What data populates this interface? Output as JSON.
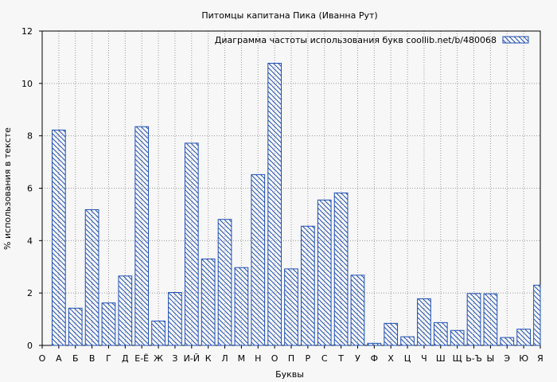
{
  "chart_data": {
    "type": "bar",
    "title": "Питомцы капитана Пика (Иванна Рут)",
    "xlabel": "Буквы",
    "ylabel": "% использования в тексте",
    "ylim": [
      0,
      12
    ],
    "yticks": [
      0,
      2,
      4,
      6,
      8,
      10,
      12
    ],
    "grid": true,
    "legend_position": "top-right",
    "categories": [
      "О",
      "А",
      "Б",
      "В",
      "Г",
      "Д",
      "Е-Ё",
      "Ж",
      "З",
      "И-Й",
      "К",
      "Л",
      "М",
      "Н",
      "О",
      "П",
      "Р",
      "С",
      "Т",
      "У",
      "Ф",
      "Х",
      "Ц",
      "Ч",
      "Ш",
      "Щ",
      "Ь-Ъ",
      "Ы",
      "Э",
      "Ю",
      "Я"
    ],
    "series": [
      {
        "name": "Диаграмма частоты использования букв  coollib.net/b/480068",
        "values": [
          null,
          8.22,
          1.42,
          5.18,
          1.62,
          2.65,
          8.35,
          0.93,
          2.02,
          7.72,
          3.3,
          4.81,
          2.97,
          6.52,
          10.77,
          2.92,
          4.55,
          5.55,
          5.82,
          2.68,
          0.08,
          0.84,
          0.33,
          1.78,
          0.87,
          0.57,
          1.98,
          1.97,
          0.3,
          0.62,
          2.3
        ]
      }
    ],
    "colors": {
      "bar_stroke": "#1f4fb4",
      "background": "#f7f7f7",
      "grid": "#999999"
    }
  }
}
